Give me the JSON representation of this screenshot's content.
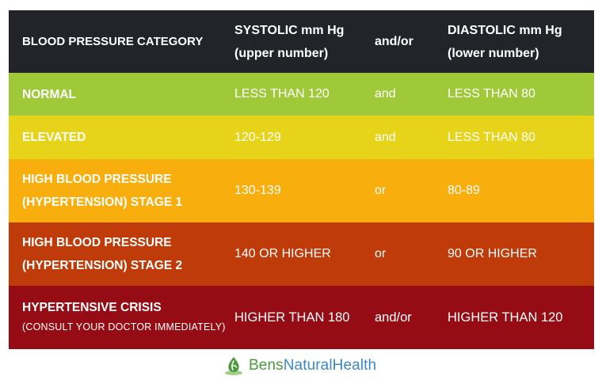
{
  "header": {
    "category": "BLOOD PRESSURE CATEGORY",
    "systolic_line1": "SYSTOLIC mm Hg",
    "systolic_line2": "(upper number)",
    "operator": "and/or",
    "diastolic_line1": "DIASTOLIC mm Hg",
    "diastolic_line2": "(lower number)"
  },
  "rows": [
    {
      "category_line1": "NORMAL",
      "systolic": "LESS THAN 120",
      "operator": "and",
      "diastolic": "LESS THAN 80",
      "color": "#a0c93a"
    },
    {
      "category_line1": "ELEVATED",
      "systolic": "120-129",
      "operator": "and",
      "diastolic": "LESS THAN 80",
      "color": "#e8d31b"
    },
    {
      "category_line1": "HIGH BLOOD PRESSURE",
      "category_line2": "(HYPERTENSION) STAGE 1",
      "systolic": "130-139",
      "operator": "or",
      "diastolic": "80-89",
      "color": "#f8ae0d"
    },
    {
      "category_line1": "HIGH BLOOD PRESSURE",
      "category_line2": "(HYPERTENSION) STAGE 2",
      "systolic": "140 OR HIGHER",
      "operator": "or",
      "diastolic": "90 OR HIGHER",
      "color": "#bf3b0a"
    },
    {
      "category_line1": "HYPERTENSIVE CRISIS",
      "category_note": "(CONSULT YOUR DOCTOR IMMEDIATELY)",
      "systolic": "HIGHER THAN 180",
      "operator": "and/or",
      "diastolic": "HIGHER THAN 120",
      "color": "#950c15"
    }
  ],
  "brand": {
    "name_part1": "Bens",
    "name_part2": "NaturalHealth",
    "icon": "leaf-drop-icon",
    "color_green": "#4c9a3b",
    "color_blue": "#3d88c8"
  }
}
